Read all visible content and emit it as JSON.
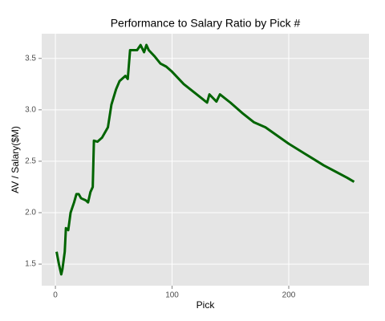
{
  "chart_data": {
    "type": "line",
    "title": "Performance to Salary Ratio by Pick #",
    "x_label": "Pick",
    "y_label": "AV / Salary($M)",
    "x": [
      1,
      3,
      5,
      6,
      8,
      9,
      11,
      13,
      16,
      18,
      20,
      22,
      26,
      28,
      30,
      32,
      33,
      36,
      40,
      45,
      48,
      52,
      55,
      60,
      62,
      64,
      70,
      73,
      76,
      78,
      80,
      85,
      90,
      95,
      100,
      110,
      120,
      130,
      132,
      138,
      141,
      150,
      160,
      170,
      180,
      190,
      200,
      210,
      220,
      230,
      240,
      250,
      256
    ],
    "series": [
      {
        "color": "#006400",
        "values": [
          1.62,
          1.5,
          1.4,
          1.45,
          1.62,
          1.85,
          1.83,
          2.0,
          2.1,
          2.18,
          2.18,
          2.14,
          2.12,
          2.1,
          2.2,
          2.25,
          2.7,
          2.69,
          2.73,
          2.83,
          3.05,
          3.2,
          3.28,
          3.33,
          3.3,
          3.58,
          3.58,
          3.63,
          3.56,
          3.63,
          3.58,
          3.52,
          3.45,
          3.42,
          3.37,
          3.25,
          3.16,
          3.07,
          3.15,
          3.08,
          3.15,
          3.07,
          2.97,
          2.88,
          2.83,
          2.75,
          2.67,
          2.6,
          2.53,
          2.46,
          2.4,
          2.34,
          2.3
        ]
      }
    ],
    "xlim": [
      -11.75,
      268.75
    ],
    "xticks": [
      0,
      100,
      200
    ],
    "ylim": [
      1.29,
      3.74
    ],
    "yticks": [
      1.5,
      2.0,
      2.5,
      3.0,
      3.5
    ],
    "grid": true
  }
}
